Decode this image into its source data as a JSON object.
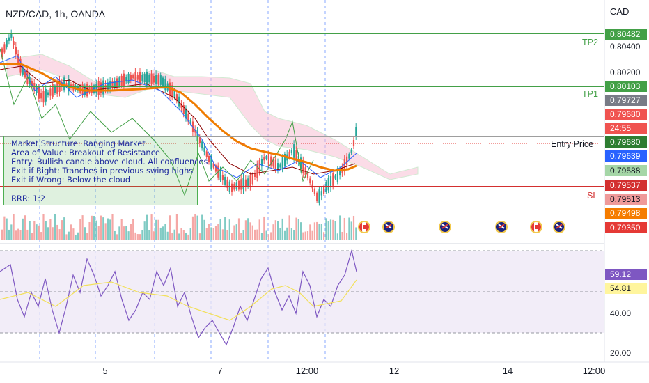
{
  "header": {
    "symbol_title": "NZD/CAD, 1h, OANDA",
    "currency": "CAD"
  },
  "notes": {
    "lines": [
      "Market Structure: Ranging Market",
      "Area of Value: Breakout of Resistance",
      "Entry: Bullish candle above cloud. All confluences",
      "Exit if Right: Tranches in previous swing highs",
      "Exit if Wrong: Below the cloud"
    ],
    "rrr": "RRR: 1:2"
  },
  "levels": {
    "tp2": "TP2",
    "tp1": "TP1",
    "entry": "Entry Price",
    "sl": "SL"
  },
  "price_axis": {
    "labels": [
      "0.80400",
      "0.80200"
    ],
    "badges": [
      {
        "text": "0.80482",
        "bg": "#43a047",
        "fg": "#ffffff"
      },
      {
        "text": "0.80103",
        "bg": "#43a047",
        "fg": "#ffffff"
      },
      {
        "text": "0.79727",
        "bg": "#787b86",
        "fg": "#ffffff"
      },
      {
        "text": "0.79680",
        "bg": "#f05350",
        "fg": "#ffffff"
      },
      {
        "text": "24:55",
        "bg": "#f05350",
        "fg": "#ffffff"
      },
      {
        "text": "0.79680",
        "bg": "#2e7d32",
        "fg": "#ffffff"
      },
      {
        "text": "0.79639",
        "bg": "#2962ff",
        "fg": "#ffffff"
      },
      {
        "text": "0.79588",
        "bg": "#a5d6a7",
        "fg": "#131722"
      },
      {
        "text": "0.79537",
        "bg": "#d32f2f",
        "fg": "#ffffff"
      },
      {
        "text": "0.79513",
        "bg": "#ef9a9a",
        "fg": "#131722"
      },
      {
        "text": "0.79498",
        "bg": "#f57c00",
        "fg": "#ffffff"
      },
      {
        "text": "0.79350",
        "bg": "#e53935",
        "fg": "#ffffff"
      }
    ]
  },
  "rsi_axis": {
    "labels": [
      "40.00",
      "20.00"
    ],
    "badges": [
      {
        "text": "59.12",
        "bg": "#7e57c2",
        "fg": "#ffffff"
      },
      {
        "text": "54.81",
        "bg": "#fff59d",
        "fg": "#131722"
      }
    ]
  },
  "time_axis": {
    "labels": [
      "5",
      "7",
      "12:00",
      "12",
      "14",
      "12:00"
    ]
  },
  "events": {
    "flags": [
      "canada-flag-icon",
      "new-zealand-flag-icon",
      "new-zealand-flag-icon",
      "new-zealand-flag-icon",
      "canada-flag-icon",
      "new-zealand-flag-icon"
    ]
  },
  "colors": {
    "tp_line": "#43a047",
    "sl_line": "#d32f2f",
    "entry_line": "#9e9e9e",
    "ma_line": "#ef7c00",
    "rsi_line": "#7e57c2",
    "rsi_ma": "#f2e05a",
    "rsi_band": "#ede7f6",
    "session_line": "#2962ff"
  }
}
